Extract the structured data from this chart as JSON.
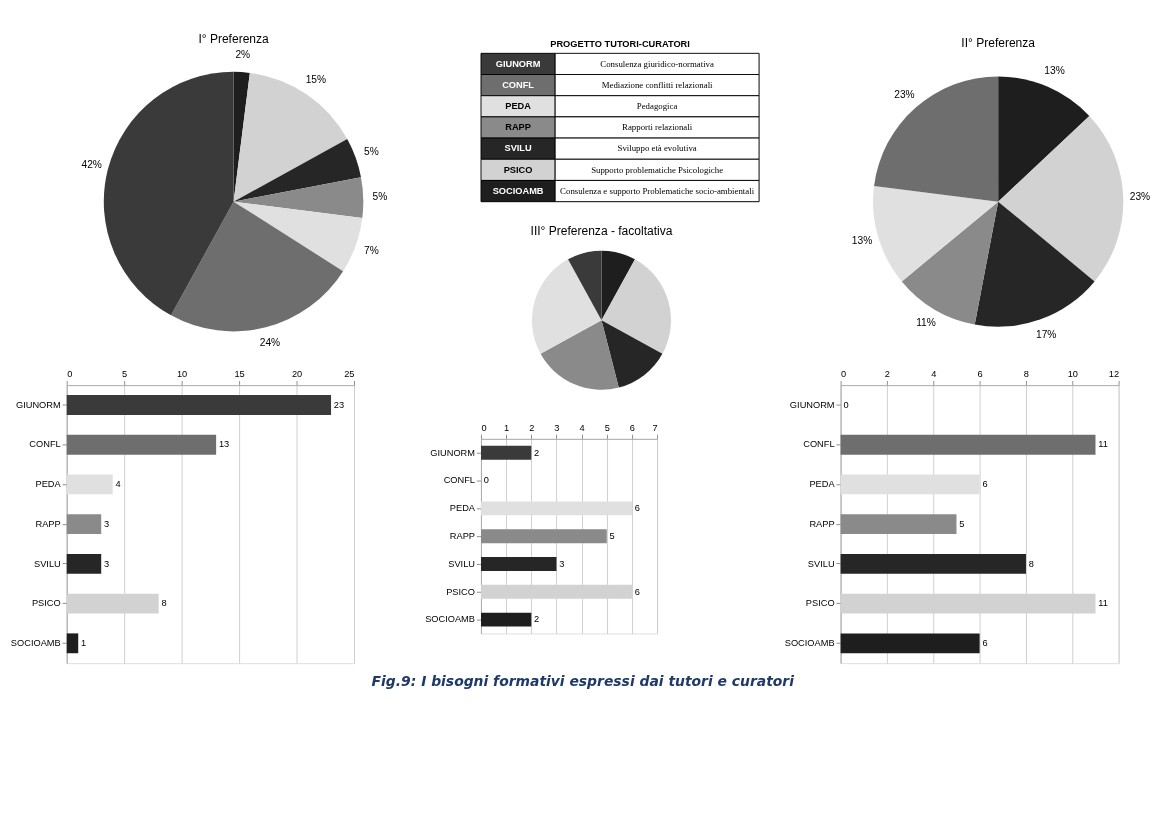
{
  "chart_data": [
    {
      "type": "pie",
      "title": "I° Preferenza",
      "categories": [
        null,
        null,
        null,
        null,
        null,
        null,
        null
      ],
      "values": [
        2,
        15,
        5,
        5,
        7,
        24,
        42
      ],
      "value_labels": [
        "2%",
        "15%",
        "5%",
        "5%",
        "7%",
        "24%",
        "42%"
      ],
      "colors": [
        "#1e1e1e",
        "#d2d2d2",
        "#262626",
        "#8a8a8a",
        "#e0e0e0",
        "#6e6e6e",
        "#3a3a3a"
      ]
    },
    {
      "type": "other",
      "title": "PROGETTO TUTORI-CURATORI",
      "categories": [
        "GIUNORM",
        "CONFL",
        "PEDA",
        "RAPP",
        "SVILU",
        "PSICO",
        "SOCIOAMB"
      ],
      "colors": [
        "#3a3a3a",
        "#6e6e6e",
        "#e0e0e0",
        "#8a8a8a",
        "#262626",
        "#d2d2d2",
        "#1e1e1e"
      ],
      "annotations": [
        "Consulenza giuridico-normativa",
        "Mediazione conflitti relazionali",
        "Pedagogica",
        "Rapporti relazionali",
        "Sviluppo età evolutiva",
        "Supporto problematiche Psicologiche",
        "Consulenza e supporto Problematiche socio-ambientali"
      ]
    },
    {
      "type": "pie",
      "title": "II° Preferenza",
      "categories": [
        null,
        null,
        null,
        null,
        null,
        null
      ],
      "values": [
        13,
        23,
        17,
        11,
        13,
        23
      ],
      "value_labels": [
        "13%",
        "23%",
        "17%",
        "11%",
        "13%",
        "23%"
      ],
      "colors": [
        "#1e1e1e",
        "#d2d2d2",
        "#262626",
        "#8a8a8a",
        "#e0e0e0",
        "#6e6e6e"
      ]
    },
    {
      "type": "pie",
      "title": "III° Preferenza - facoltativa",
      "categories": [
        null,
        null,
        null,
        null,
        null,
        null
      ],
      "values": [
        8,
        25,
        13,
        21,
        25,
        8
      ],
      "colors": [
        "#1e1e1e",
        "#d2d2d2",
        "#262626",
        "#8a8a8a",
        "#e0e0e0",
        "#3a3a3a"
      ]
    },
    {
      "type": "bar",
      "orientation": "horizontal",
      "categories": [
        "GIUNORM",
        "CONFL",
        "PEDA",
        "RAPP",
        "SVILU",
        "PSICO",
        "SOCIOAMB"
      ],
      "values": [
        23,
        13,
        4,
        3,
        3,
        8,
        1
      ],
      "colors": [
        "#3a3a3a",
        "#6e6e6e",
        "#e0e0e0",
        "#8a8a8a",
        "#262626",
        "#d2d2d2",
        "#1e1e1e"
      ],
      "xlim": [
        0,
        25
      ],
      "xticks": [
        0,
        5,
        10,
        15,
        20,
        25
      ],
      "grid": "x",
      "data_labels": true
    },
    {
      "type": "bar",
      "orientation": "horizontal",
      "categories": [
        "GIUNORM",
        "CONFL",
        "PEDA",
        "RAPP",
        "SVILU",
        "PSICO",
        "SOCIOAMB"
      ],
      "values": [
        2,
        0,
        6,
        5,
        3,
        6,
        2
      ],
      "colors": [
        "#3a3a3a",
        "#6e6e6e",
        "#e0e0e0",
        "#8a8a8a",
        "#262626",
        "#d2d2d2",
        "#1e1e1e"
      ],
      "xlim": [
        0,
        7
      ],
      "xticks": [
        0,
        1,
        2,
        3,
        4,
        5,
        6,
        7
      ],
      "grid": "x",
      "data_labels": true
    },
    {
      "type": "bar",
      "orientation": "horizontal",
      "categories": [
        "GIUNORM",
        "CONFL",
        "PEDA",
        "RAPP",
        "SVILU",
        "PSICO",
        "SOCIOAMB"
      ],
      "values": [
        0,
        11,
        6,
        5,
        8,
        11,
        6
      ],
      "colors": [
        "#3a3a3a",
        "#6e6e6e",
        "#e0e0e0",
        "#8a8a8a",
        "#262626",
        "#d2d2d2",
        "#1e1e1e"
      ],
      "xlim": [
        0,
        12
      ],
      "xticks": [
        0,
        2,
        4,
        6,
        8,
        10,
        12
      ],
      "grid": "x",
      "data_labels": true,
      "annotations": [
        "Fig.9: I bisogni formativi espressi dai tutori e curatori"
      ]
    }
  ]
}
